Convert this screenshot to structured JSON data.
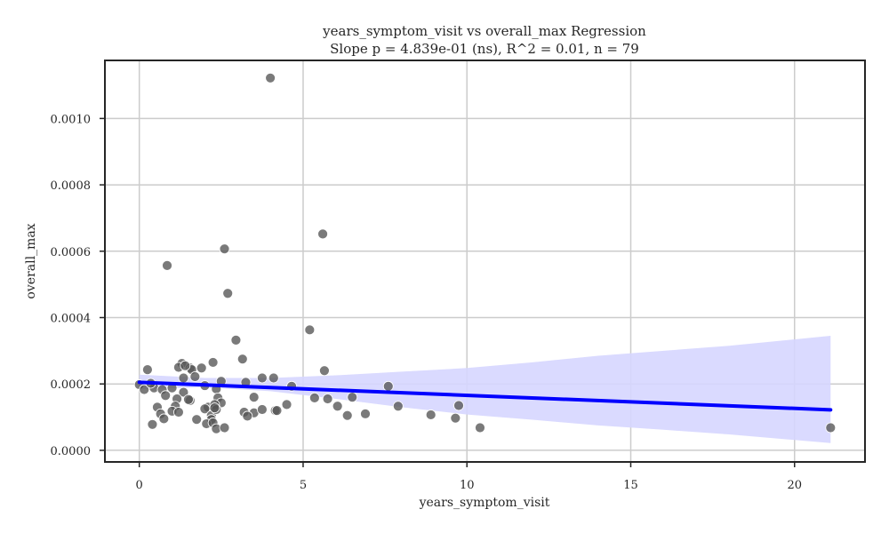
{
  "chart_data": {
    "type": "scatter",
    "title": "years_symptom_visit vs overall_max Regression",
    "subtitle": "Slope p = 4.839e-01 (ns), R^2 = 0.01, n = 79",
    "xlabel": "years_symptom_visit",
    "ylabel": "overall_max",
    "xlim": [
      -1.05,
      22.15
    ],
    "ylim": [
      -3.5e-05,
      0.001175
    ],
    "xticks": [
      0,
      5,
      10,
      15,
      20
    ],
    "xtick_labels": [
      "0",
      "5",
      "10",
      "15",
      "20"
    ],
    "yticks": [
      0,
      0.0002,
      0.0004,
      0.0006,
      0.0008,
      0.001
    ],
    "ytick_labels": [
      "0.0000",
      "0.0002",
      "0.0004",
      "0.0006",
      "0.0008",
      "0.0010"
    ],
    "grid": true,
    "colors": {
      "points": "#555555",
      "line": "#0000ff",
      "band": "#d6d6ff",
      "grid": "#cccccc",
      "frame": "#262626"
    },
    "regression": {
      "x": [
        0,
        21.1
      ],
      "y": [
        0.000205,
        0.000122
      ],
      "ci_x": [
        0,
        2,
        4,
        6,
        8,
        10,
        12,
        14,
        16,
        18,
        21.1
      ],
      "ci_lower": [
        0.000185,
        0.00019,
        0.000178,
        0.000155,
        0.00013,
        0.000108,
        9.2e-05,
        7.5e-05,
        6.2e-05,
        4.8e-05,
        2.2e-05
      ],
      "ci_upper": [
        0.000228,
        0.000218,
        0.000218,
        0.000226,
        0.000237,
        0.000248,
        0.000265,
        0.000285,
        0.0003,
        0.000315,
        0.000345
      ]
    },
    "series": [
      {
        "x": [
          4.0,
          5.6,
          2.6,
          0.85,
          2.7,
          5.2,
          2.95,
          3.15,
          5.65,
          2.25,
          1.3,
          1.2,
          1.55,
          1.6,
          1.9,
          0.25,
          1.35,
          1.7,
          3.75,
          4.1,
          2.5,
          3.25,
          2.0,
          2.35,
          0.0,
          0.45,
          0.15,
          0.7,
          1.0,
          1.35,
          4.65,
          7.6,
          0.8,
          1.15,
          2.4,
          3.5,
          5.35,
          5.75,
          6.5,
          1.55,
          2.5,
          0.55,
          1.1,
          1.5,
          2.1,
          2.3,
          2.0,
          6.05,
          7.9,
          9.75,
          0.65,
          1.0,
          1.2,
          3.2,
          3.5,
          3.75,
          4.15,
          4.5,
          6.35,
          6.9,
          8.9,
          9.65,
          2.2,
          2.35,
          3.3,
          0.75,
          1.75,
          2.2,
          2.05,
          2.25,
          0.4,
          2.35,
          2.6,
          10.4,
          21.1,
          4.2,
          2.3,
          1.4,
          0.35
        ],
        "y": [
          0.001122,
          0.000652,
          0.000607,
          0.000557,
          0.000473,
          0.000363,
          0.000332,
          0.000275,
          0.00024,
          0.000265,
          0.000262,
          0.00025,
          0.000248,
          0.000243,
          0.000248,
          0.000243,
          0.000218,
          0.000222,
          0.000218,
          0.000218,
          0.000208,
          0.000205,
          0.000195,
          0.000185,
          0.000198,
          0.000188,
          0.000183,
          0.000183,
          0.000188,
          0.000175,
          0.000193,
          0.000193,
          0.000165,
          0.000155,
          0.000158,
          0.00016,
          0.000158,
          0.000155,
          0.00016,
          0.00015,
          0.000143,
          0.00013,
          0.000133,
          0.000153,
          0.00013,
          0.000138,
          0.000125,
          0.000133,
          0.000133,
          0.000135,
          0.00011,
          0.000118,
          0.000115,
          0.000115,
          0.000113,
          0.000123,
          0.00012,
          0.000138,
          0.000105,
          0.00011,
          0.000107,
          9.7e-05,
          0.000105,
          0.000123,
          0.000103,
          9.5e-05,
          9.3e-05,
          9.3e-05,
          8e-05,
          8.3e-05,
          7.8e-05,
          6.5e-05,
          6.8e-05,
          6.8e-05,
          6.8e-05,
          0.00012,
          0.000128,
          0.000255,
          0.000202
        ]
      }
    ]
  }
}
